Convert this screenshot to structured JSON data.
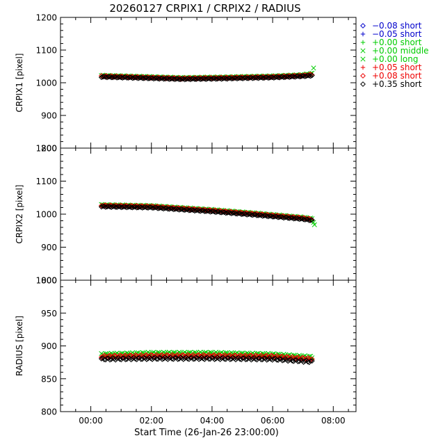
{
  "chart_data": {
    "type": "scatter",
    "title": "20260127 CRPIX1 / CRPIX2 / RADIUS",
    "xlabel": "Start Time (26-Jan-26 23:00:00)",
    "x_unit": "hours",
    "xlim": [
      -1.0,
      8.75
    ],
    "x_ticks": [
      0,
      2,
      4,
      6,
      8
    ],
    "x_tick_labels": [
      "00:00",
      "02:00",
      "04:00",
      "06:00",
      "08:00"
    ],
    "grid": false,
    "legend_position": "right",
    "legend": [
      {
        "symbol": "diamond",
        "label": "−0.08 short",
        "color": "#0000cc"
      },
      {
        "symbol": "plus",
        "label": "−0.05 short",
        "color": "#0000cc"
      },
      {
        "symbol": "plus",
        "label": "+0.00 short",
        "color": "#00cc00"
      },
      {
        "symbol": "cross",
        "label": "+0.00 middle",
        "color": "#00cc00"
      },
      {
        "symbol": "cross",
        "label": "+0.00 long",
        "color": "#00cc00"
      },
      {
        "symbol": "plus",
        "label": "+0.05 short",
        "color": "#ee0000"
      },
      {
        "symbol": "diamond",
        "label": "+0.08 short",
        "color": "#ee0000"
      },
      {
        "symbol": "diamond",
        "label": "+0.35 short",
        "color": "#000000"
      }
    ],
    "panels": [
      {
        "ylabel": "CRPIX1 [pixel]",
        "ylim": [
          800,
          1200
        ],
        "y_ticks": [
          800,
          900,
          1000,
          1100,
          1200
        ],
        "series": [
          {
            "color": "#00cc00",
            "symbol": "cross",
            "x": [
              0.35,
              1.5,
              3,
              4.5,
              6,
              7,
              7.3
            ],
            "y": [
              1022,
              1019,
              1015,
              1017,
              1020,
              1024,
              1028
            ]
          },
          {
            "color": "#ee0000",
            "symbol": "diamond",
            "x": [
              0.35,
              1.5,
              3,
              4.5,
              6,
              7,
              7.3
            ],
            "y": [
              1020,
              1017,
              1013,
              1015,
              1018,
              1022,
              1025
            ]
          },
          {
            "color": "#000000",
            "symbol": "diamond",
            "x": [
              0.35,
              1.5,
              3,
              4.5,
              6,
              7,
              7.3
            ],
            "y": [
              1018,
              1015,
              1011,
              1013,
              1016,
              1020,
              1022
            ]
          }
        ],
        "outliers": [
          {
            "color": "#00cc00",
            "symbol": "cross",
            "x": 7.35,
            "y": 1045
          }
        ]
      },
      {
        "ylabel": "CRPIX2 [pixel]",
        "ylim": [
          800,
          1200
        ],
        "y_ticks": [
          800,
          900,
          1000,
          1100,
          1200
        ],
        "series": [
          {
            "color": "#00cc00",
            "symbol": "cross",
            "x": [
              0.35,
              2,
              4,
              5.5,
              7,
              7.3
            ],
            "y": [
              1028,
              1025,
              1013,
              1002,
              990,
              986
            ]
          },
          {
            "color": "#ee0000",
            "symbol": "diamond",
            "x": [
              0.35,
              2,
              4,
              5.5,
              7,
              7.3
            ],
            "y": [
              1026,
              1023,
              1011,
              1000,
              988,
              984
            ]
          },
          {
            "color": "#000000",
            "symbol": "diamond",
            "x": [
              0.35,
              2,
              4,
              5.5,
              7,
              7.3
            ],
            "y": [
              1023,
              1020,
              1008,
              997,
              985,
              981
            ]
          }
        ],
        "outliers": [
          {
            "color": "#00cc00",
            "symbol": "cross",
            "x": 7.35,
            "y": 975
          },
          {
            "color": "#00cc00",
            "symbol": "cross",
            "x": 7.38,
            "y": 968
          }
        ]
      },
      {
        "ylabel": "RADIUS [pixel]",
        "ylim": [
          800,
          1000
        ],
        "y_ticks": [
          800,
          850,
          900,
          950,
          1000
        ],
        "series": [
          {
            "color": "#00cc00",
            "symbol": "cross",
            "x": [
              0.35,
              2,
              4,
              6,
              7.3
            ],
            "y": [
              887,
              889,
              889,
              887,
              883
            ]
          },
          {
            "color": "#ee0000",
            "symbol": "diamond",
            "x": [
              0.35,
              2,
              4,
              6,
              7.3
            ],
            "y": [
              884,
              885,
              885,
              884,
              880
            ]
          },
          {
            "color": "#000000",
            "symbol": "diamond",
            "x": [
              0.35,
              2,
              4,
              6,
              7.3
            ],
            "y": [
              880,
              881,
              881,
              880,
              876
            ]
          }
        ],
        "outliers": []
      }
    ]
  }
}
